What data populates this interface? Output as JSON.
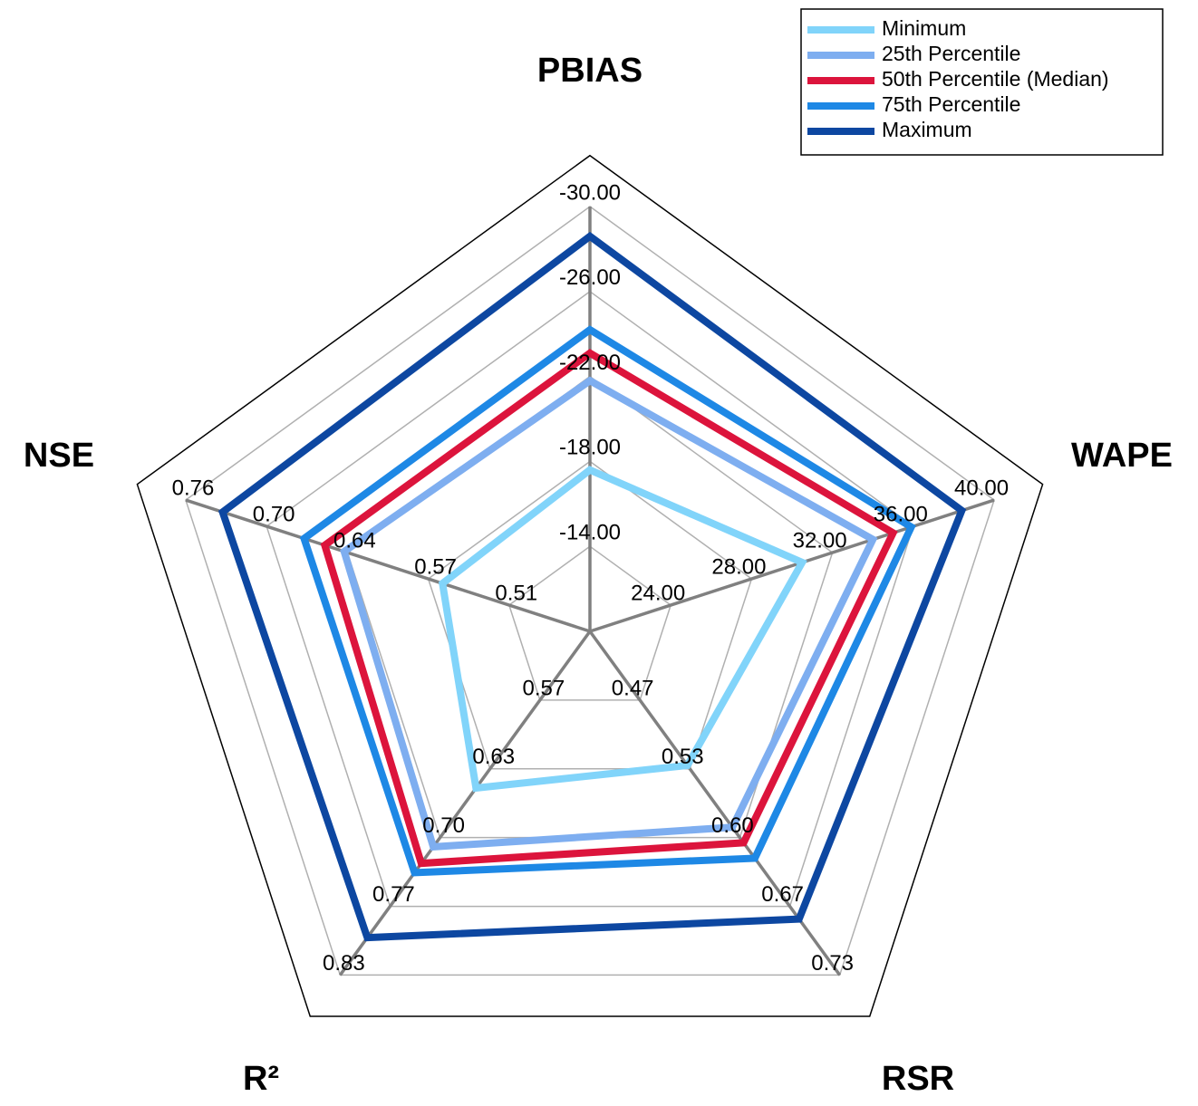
{
  "chart_data": {
    "type": "radar",
    "categories": [
      "PBIAS",
      "WAPE",
      "RSR",
      "R²",
      "NSE"
    ],
    "axes": [
      {
        "lim": [
          -10,
          -30
        ],
        "ticks": [
          {
            "value": -14,
            "label": "-14.00"
          },
          {
            "value": -18,
            "label": "-18.00"
          },
          {
            "value": -22,
            "label": "-22.00"
          },
          {
            "value": -26,
            "label": "-26.00"
          },
          {
            "value": -30,
            "label": "-30.00"
          }
        ]
      },
      {
        "lim": [
          20,
          40
        ],
        "ticks": [
          {
            "value": 24,
            "label": "24.00"
          },
          {
            "value": 28,
            "label": "28.00"
          },
          {
            "value": 32,
            "label": "32.00"
          },
          {
            "value": 36,
            "label": "36.00"
          },
          {
            "value": 40,
            "label": "40.00"
          }
        ]
      },
      {
        "lim": [
          0.4,
          0.7333
        ],
        "ticks": [
          {
            "value": 0.4667,
            "label": "0.47"
          },
          {
            "value": 0.5333,
            "label": "0.53"
          },
          {
            "value": 0.6,
            "label": "0.60"
          },
          {
            "value": 0.6667,
            "label": "0.67"
          },
          {
            "value": 0.7333,
            "label": "0.73"
          }
        ]
      },
      {
        "lim": [
          0.5,
          0.8333
        ],
        "ticks": [
          {
            "value": 0.5667,
            "label": "0.57"
          },
          {
            "value": 0.6333,
            "label": "0.63"
          },
          {
            "value": 0.7,
            "label": "0.70"
          },
          {
            "value": 0.7667,
            "label": "0.77"
          },
          {
            "value": 0.8333,
            "label": "0.83"
          }
        ]
      },
      {
        "lim": [
          0.45,
          0.7625
        ],
        "ticks": [
          {
            "value": 0.5125,
            "label": "0.51"
          },
          {
            "value": 0.575,
            "label": "0.57"
          },
          {
            "value": 0.6375,
            "label": "0.64"
          },
          {
            "value": 0.7,
            "label": "0.70"
          },
          {
            "value": 0.7625,
            "label": "0.76"
          }
        ]
      }
    ],
    "series": [
      {
        "name": "Minimum",
        "color": "#81d4fa",
        "values": [
          -17.6,
          30.5,
          0.53,
          0.652,
          0.564
        ]
      },
      {
        "name": "25th Percentile",
        "color": "#7eaef0",
        "values": [
          -21.8,
          34.0,
          0.59,
          0.709,
          0.64
        ]
      },
      {
        "name": "50th Percentile (Median)",
        "color": "#dc143c",
        "values": [
          -23.1,
          35.0,
          0.605,
          0.725,
          0.655
        ]
      },
      {
        "name": "75th Percentile",
        "color": "#1e88e5",
        "values": [
          -24.2,
          35.9,
          0.62,
          0.734,
          0.671
        ]
      },
      {
        "name": "Maximum",
        "color": "#0d47a1",
        "values": [
          -28.6,
          38.4,
          0.679,
          0.797,
          0.734
        ]
      }
    ],
    "legend": "upper right"
  }
}
